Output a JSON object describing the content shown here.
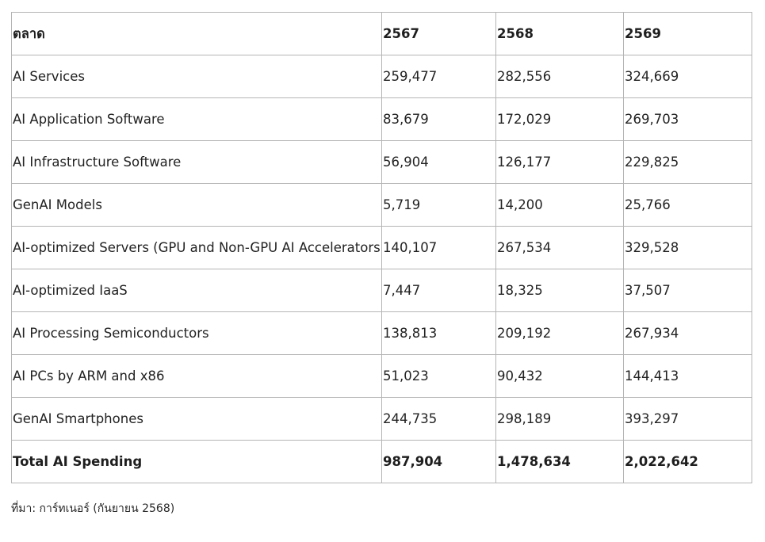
{
  "table": {
    "headers": [
      "ตลาด",
      "2567",
      "2568",
      "2569"
    ],
    "rows": [
      [
        "AI Services",
        "259,477",
        "282,556",
        "324,669"
      ],
      [
        "AI Application Software",
        "83,679",
        "172,029",
        "269,703"
      ],
      [
        "AI Infrastructure Software",
        "56,904",
        "126,177",
        "229,825"
      ],
      [
        "GenAI Models",
        "5,719",
        "14,200",
        "25,766"
      ],
      [
        "AI-optimized Servers (GPU and Non-GPU AI Accelerators)",
        "140,107",
        "267,534",
        "329,528"
      ],
      [
        "AI-optimized IaaS",
        "7,447",
        "18,325",
        "37,507"
      ],
      [
        "AI Processing Semiconductors",
        "138,813",
        "209,192",
        "267,934"
      ],
      [
        "AI PCs by ARM and x86",
        "51,023",
        "90,432",
        "144,413"
      ],
      [
        "GenAI Smartphones",
        "244,735",
        "298,189",
        "393,297"
      ]
    ],
    "total": [
      "Total AI Spending",
      "987,904",
      "1,478,634",
      "2,022,642"
    ]
  },
  "source": "ที่มา: การ์ทเนอร์ (กันยายน 2568)"
}
